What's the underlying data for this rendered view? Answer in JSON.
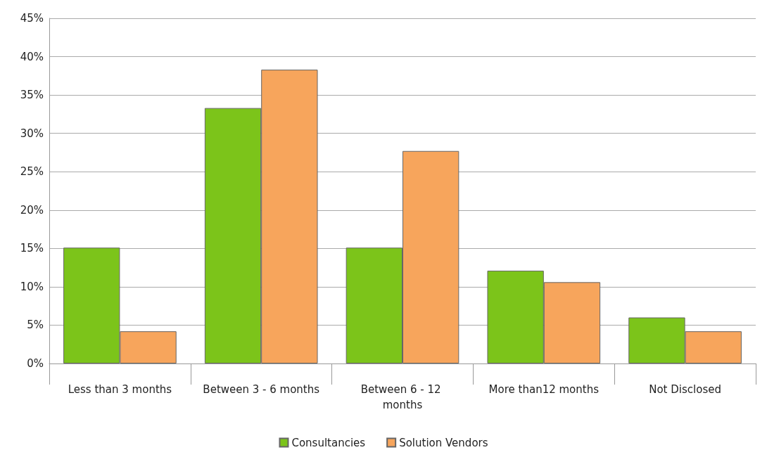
{
  "chart_data": {
    "type": "bar",
    "categories": [
      "Less than 3 months",
      "Between 3 - 6 months",
      "Between 6 - 12 months",
      "More than12 months",
      "Not Disclosed"
    ],
    "series": [
      {
        "name": "Consultancies",
        "color": "#7cc41a",
        "values": [
          15.1,
          33.3,
          15.1,
          12.1,
          6
        ]
      },
      {
        "name": "Solution Vendors",
        "color": "#f7a55c",
        "values": [
          4.2,
          38.3,
          27.7,
          10.6,
          4.2
        ]
      }
    ],
    "ylim": [
      0,
      45
    ],
    "yticks": [
      {
        "value": 0,
        "label": "0%"
      },
      {
        "value": 5,
        "label": "5%"
      },
      {
        "value": 10,
        "label": "10%"
      },
      {
        "value": 15,
        "label": "15%"
      },
      {
        "value": 20,
        "label": "20%"
      },
      {
        "value": 25,
        "label": "25%"
      },
      {
        "value": 30,
        "label": "30%"
      },
      {
        "value": 35,
        "label": "35%"
      },
      {
        "value": 40,
        "label": "40%"
      },
      {
        "value": 45,
        "label": "45%"
      }
    ],
    "grid": "y",
    "legend": "bottom"
  }
}
